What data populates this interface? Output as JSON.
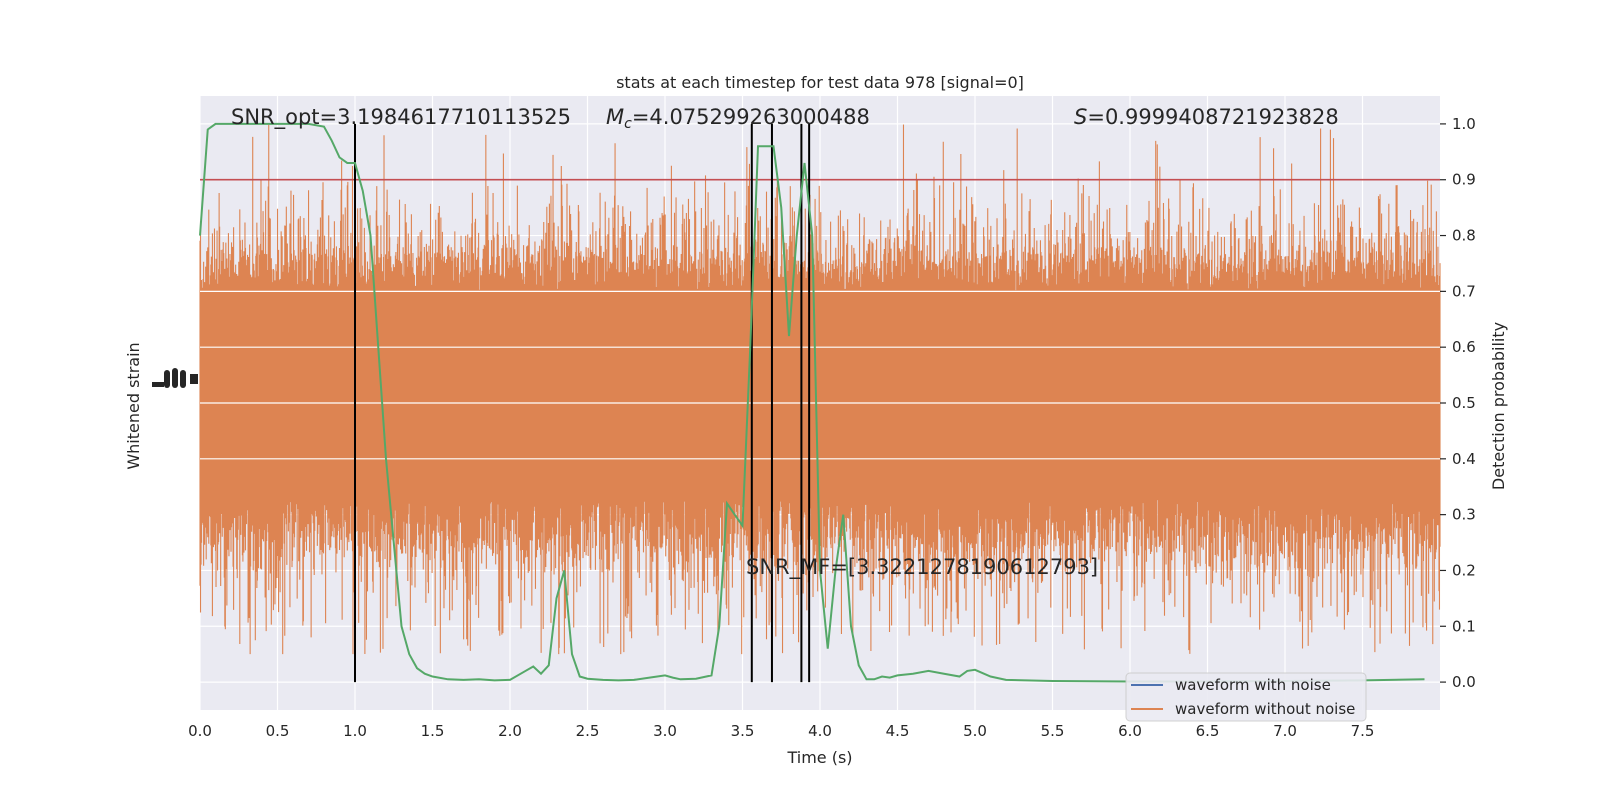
{
  "chart_data": {
    "type": "line",
    "title": "stats at each timestep for test data 978 [signal=0]",
    "xlabel": "Time (s)",
    "ylabel_left": "Whitened strain",
    "ylabel_right": "Detection probability",
    "xlim": [
      0.0,
      8.0
    ],
    "ylim_right": [
      -0.05,
      1.05
    ],
    "x_ticks": [
      0.0,
      0.5,
      1.0,
      1.5,
      2.0,
      2.5,
      3.0,
      3.5,
      4.0,
      4.5,
      5.0,
      5.5,
      6.0,
      6.5,
      7.0,
      7.5
    ],
    "x_tick_labels": [
      "0.0",
      "0.5",
      "1.0",
      "1.5",
      "2.0",
      "2.5",
      "3.0",
      "3.5",
      "4.0",
      "4.5",
      "5.0",
      "5.5",
      "6.0",
      "6.5",
      "7.0",
      "7.5"
    ],
    "y_ticks_right": [
      0.0,
      0.1,
      0.2,
      0.3,
      0.4,
      0.5,
      0.6,
      0.7,
      0.8,
      0.9,
      1.0
    ],
    "y_tick_labels_right": [
      "0.0",
      "0.1",
      "0.2",
      "0.3",
      "0.4",
      "0.5",
      "0.6",
      "0.7",
      "0.8",
      "0.9",
      "1.0"
    ],
    "grid": true,
    "legend_position": "lower-right",
    "colors": {
      "background": "#eaeaf2",
      "grid": "#ffffff",
      "noise_waveform": "#dd8452",
      "signal_waveform": "#4c72b0",
      "probability": "#55a868",
      "threshold": "#c44e52",
      "event_lines": "#000000"
    },
    "annotations": {
      "snr_opt": "SNR_opt=3.1984617710113525",
      "mc_symbol": "M",
      "mc_subscript": "c",
      "mc_value": "=4.075299263000488",
      "s_symbol": "S",
      "s_value": "=0.9999408721923828",
      "snr_mf": "SNR_MF=[3.322127819061279​3]"
    },
    "series": [
      {
        "name": "waveform with noise",
        "color": "#4c72b0"
      },
      {
        "name": "waveform without noise",
        "color": "#dd8452"
      }
    ],
    "threshold": 0.9,
    "event_times": [
      1.0,
      3.56,
      3.69,
      3.88,
      3.93
    ],
    "strain_envelope": {
      "core_band_prob": [
        0.33,
        0.7
      ],
      "spike_range_prob": [
        0.05,
        1.0
      ]
    },
    "detection_probability": {
      "x": [
        0.0,
        0.05,
        0.1,
        0.2,
        0.3,
        0.4,
        0.5,
        0.6,
        0.7,
        0.8,
        0.85,
        0.9,
        0.95,
        1.0,
        1.05,
        1.1,
        1.15,
        1.2,
        1.25,
        1.3,
        1.35,
        1.4,
        1.45,
        1.5,
        1.6,
        1.7,
        1.8,
        1.9,
        2.0,
        2.1,
        2.15,
        2.2,
        2.25,
        2.3,
        2.35,
        2.4,
        2.45,
        2.5,
        2.6,
        2.7,
        2.8,
        2.9,
        3.0,
        3.05,
        3.1,
        3.2,
        3.3,
        3.35,
        3.4,
        3.45,
        3.5,
        3.55,
        3.6,
        3.65,
        3.7,
        3.75,
        3.8,
        3.85,
        3.9,
        3.95,
        4.0,
        4.05,
        4.1,
        4.15,
        4.2,
        4.25,
        4.3,
        4.35,
        4.4,
        4.45,
        4.5,
        4.6,
        4.7,
        4.8,
        4.9,
        4.95,
        5.0,
        5.1,
        5.2,
        5.5,
        6.0,
        6.5,
        7.0,
        7.5,
        7.9
      ],
      "y": [
        0.8,
        0.99,
        1.0,
        1.0,
        1.0,
        1.0,
        1.0,
        1.0,
        1.0,
        0.995,
        0.97,
        0.94,
        0.93,
        0.93,
        0.88,
        0.8,
        0.6,
        0.4,
        0.25,
        0.1,
        0.05,
        0.025,
        0.015,
        0.01,
        0.005,
        0.004,
        0.005,
        0.003,
        0.004,
        0.02,
        0.028,
        0.015,
        0.03,
        0.15,
        0.2,
        0.05,
        0.01,
        0.006,
        0.004,
        0.003,
        0.004,
        0.008,
        0.012,
        0.008,
        0.005,
        0.006,
        0.012,
        0.1,
        0.32,
        0.3,
        0.28,
        0.6,
        0.96,
        0.96,
        0.96,
        0.85,
        0.62,
        0.8,
        0.93,
        0.8,
        0.2,
        0.06,
        0.2,
        0.3,
        0.1,
        0.03,
        0.005,
        0.005,
        0.01,
        0.008,
        0.012,
        0.015,
        0.02,
        0.015,
        0.01,
        0.02,
        0.022,
        0.01,
        0.004,
        0.002,
        0.001,
        0.001,
        0.002,
        0.003,
        0.005
      ]
    }
  }
}
